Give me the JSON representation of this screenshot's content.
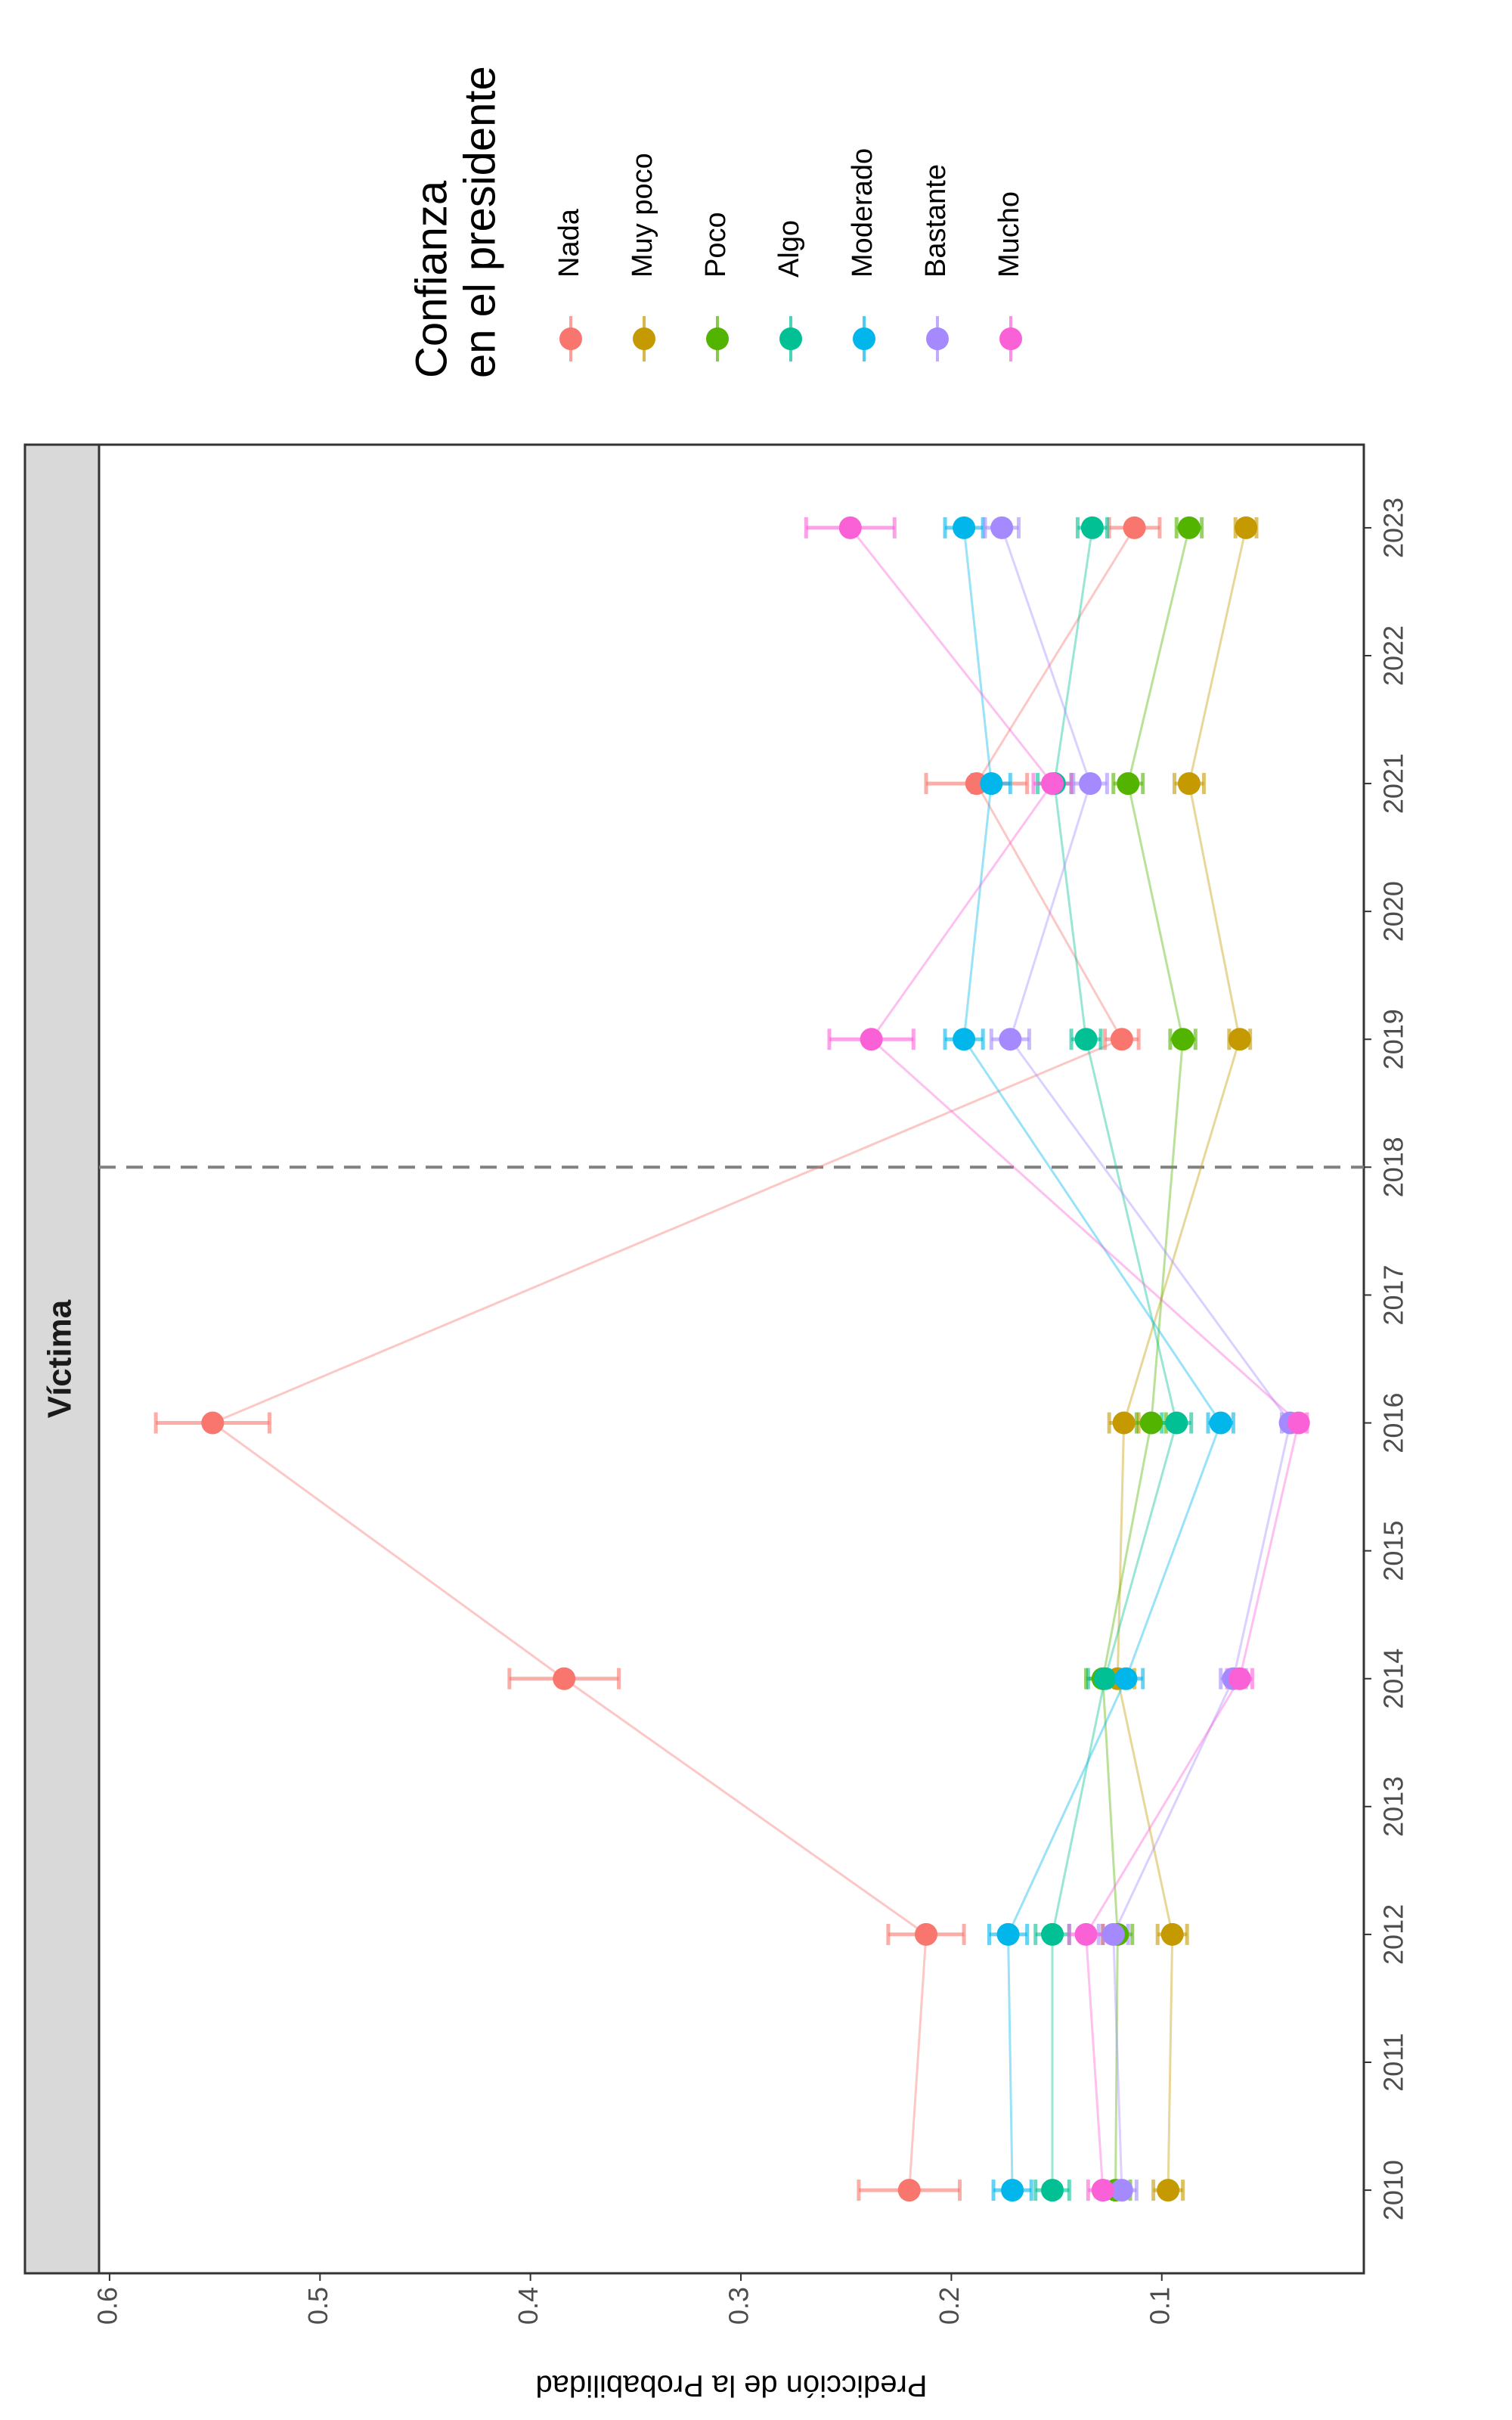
{
  "chart_data": {
    "type": "line",
    "strip_label": "Víctima",
    "y_label": "Predicción de la Probabilidad",
    "legend_title": [
      "Confianza",
      "en el presidente"
    ],
    "x": [
      2010,
      2012,
      2014,
      2016,
      2019,
      2021,
      2023
    ],
    "xlim": [
      2009.35,
      2023.65
    ],
    "xticks": [
      2010,
      2011,
      2012,
      2013,
      2014,
      2015,
      2016,
      2017,
      2018,
      2019,
      2020,
      2021,
      2022,
      2023
    ],
    "ylim": [
      0.004,
      0.605
    ],
    "yticks": [
      0.1,
      0.2,
      0.3,
      0.4,
      0.5,
      0.6
    ],
    "vline": 2018,
    "grid": false,
    "series": [
      {
        "name": "Nada",
        "color": "#F8766D",
        "values": [
          0.22,
          0.212,
          0.384,
          0.551,
          0.119,
          0.188,
          0.113
        ],
        "errors": [
          0.024,
          0.018,
          0.026,
          0.027,
          0.008,
          0.024,
          0.012
        ]
      },
      {
        "name": "Muy poco",
        "color": "#C49A00",
        "values": [
          0.097,
          0.095,
          0.121,
          0.118,
          0.063,
          0.087,
          0.06
        ],
        "errors": [
          0.007,
          0.007,
          0.008,
          0.007,
          0.005,
          0.007,
          0.005
        ]
      },
      {
        "name": "Poco",
        "color": "#53B400",
        "values": [
          0.122,
          0.121,
          0.128,
          0.105,
          0.09,
          0.116,
          0.087
        ],
        "errors": [
          0.007,
          0.007,
          0.008,
          0.007,
          0.006,
          0.007,
          0.006
        ]
      },
      {
        "name": "Algo",
        "color": "#00C094",
        "values": [
          0.152,
          0.152,
          0.127,
          0.093,
          0.136,
          0.151,
          0.133
        ],
        "errors": [
          0.008,
          0.008,
          0.008,
          0.007,
          0.007,
          0.008,
          0.007
        ]
      },
      {
        "name": "Moderado",
        "color": "#00B6EB",
        "values": [
          0.171,
          0.173,
          0.117,
          0.072,
          0.194,
          0.181,
          0.194
        ],
        "errors": [
          0.009,
          0.009,
          0.008,
          0.006,
          0.009,
          0.009,
          0.009
        ]
      },
      {
        "name": "Bastante",
        "color": "#A58AFF",
        "values": [
          0.119,
          0.123,
          0.066,
          0.039,
          0.172,
          0.134,
          0.176
        ],
        "errors": [
          0.007,
          0.007,
          0.006,
          0.004,
          0.009,
          0.008,
          0.008
        ]
      },
      {
        "name": "Mucho",
        "color": "#FB61D7",
        "values": [
          0.128,
          0.136,
          0.063,
          0.035,
          0.238,
          0.152,
          0.248
        ],
        "errors": [
          0.007,
          0.008,
          0.006,
          0.004,
          0.02,
          0.009,
          0.021
        ]
      }
    ]
  }
}
